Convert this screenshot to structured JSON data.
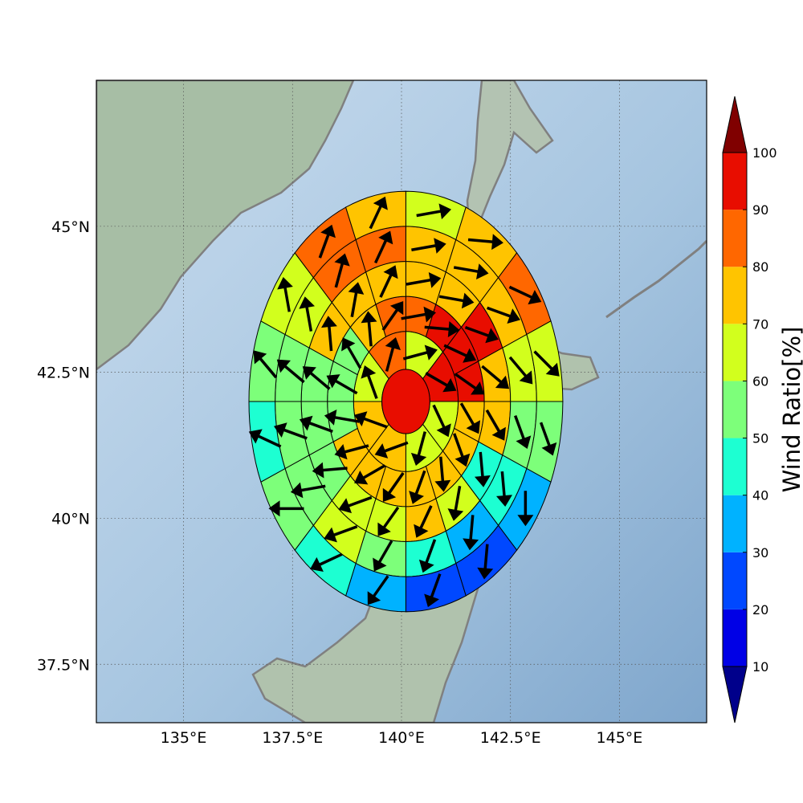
{
  "chart_data": {
    "type": "polar-grid-wind-map",
    "title": "",
    "projection": "equirectangular",
    "map_extent": {
      "lon": [
        133.0,
        147.0
      ],
      "lat": [
        36.5,
        47.5
      ]
    },
    "center": {
      "lon": 140.1,
      "lat": 42.0
    },
    "ring_edges_deg": [
      0.55,
      1.2,
      1.8,
      2.4,
      3.0
    ],
    "outer_ring_edges_deg": [
      3.0,
      3.6
    ],
    "grid_spacing_deg": 2.5,
    "x_ticks": [
      {
        "value": 135.0,
        "label": "135°E"
      },
      {
        "value": 137.5,
        "label": "137.5°E"
      },
      {
        "value": 140.0,
        "label": "140°E"
      },
      {
        "value": 142.5,
        "label": "142.5°E"
      },
      {
        "value": 145.0,
        "label": "145°E"
      }
    ],
    "y_ticks": [
      {
        "value": 45.0,
        "label": "45°N"
      },
      {
        "value": 42.5,
        "label": "42.5°N"
      },
      {
        "value": 40.0,
        "label": "40°N"
      },
      {
        "value": 37.5,
        "label": "37.5°N"
      }
    ],
    "center_cell": {
      "value": 95
    },
    "rings": [
      {
        "name": "ring-1",
        "sectors": 8,
        "start_deg": 0,
        "values": [
          65,
          95,
          65,
          65,
          75,
          75,
          65,
          85
        ],
        "arrow_deg": [
          75,
          120,
          155,
          195,
          250,
          290,
          340,
          15
        ]
      },
      {
        "name": "ring-2",
        "sectors": 16,
        "start_deg": 0,
        "values": [
          85,
          95,
          95,
          90,
          75,
          75,
          75,
          75,
          75,
          75,
          75,
          55,
          55,
          55,
          75,
          85
        ],
        "arrow_deg": [
          80,
          95,
          115,
          125,
          150,
          160,
          175,
          200,
          215,
          240,
          255,
          280,
          300,
          330,
          355,
          35
        ]
      },
      {
        "name": "ring-3",
        "sectors": 16,
        "start_deg": 0,
        "values": [
          75,
          75,
          90,
          75,
          75,
          45,
          65,
          75,
          65,
          65,
          55,
          55,
          55,
          75,
          75,
          75
        ],
        "arrow_deg": [
          80,
          100,
          110,
          130,
          150,
          175,
          190,
          205,
          215,
          250,
          265,
          290,
          310,
          355,
          10,
          25
        ]
      },
      {
        "name": "ring-4",
        "sectors": 16,
        "start_deg": 0,
        "values": [
          75,
          75,
          75,
          65,
          55,
          45,
          35,
          45,
          55,
          65,
          55,
          55,
          55,
          65,
          85,
          85
        ],
        "arrow_deg": [
          80,
          100,
          110,
          140,
          160,
          175,
          185,
          200,
          210,
          250,
          260,
          290,
          310,
          350,
          15,
          25
        ]
      },
      {
        "name": "ring-5",
        "sectors": 16,
        "start_deg": 0,
        "values": [
          65,
          75,
          85,
          65,
          55,
          35,
          25,
          25,
          35,
          45,
          55,
          45,
          55,
          65,
          85,
          75
        ],
        "arrow_deg": [
          80,
          95,
          115,
          135,
          160,
          180,
          185,
          200,
          215,
          245,
          270,
          295,
          320,
          350,
          20,
          25
        ]
      },
      {
        "name": "ring-6",
        "sectors": 32,
        "start_deg": 0,
        "values": [
          65,
          75,
          75,
          85,
          65,
          55,
          55,
          35,
          35,
          25,
          25,
          25,
          25,
          35,
          45,
          45,
          45,
          55,
          55,
          55,
          45,
          55,
          55,
          45,
          45,
          55,
          75,
          85,
          85,
          75,
          75,
          75
        ],
        "arrow_deg": [
          80,
          100,
          110,
          130,
          140,
          150,
          165,
          175,
          185,
          190,
          195,
          200,
          210,
          220,
          240,
          245,
          250,
          255,
          260,
          265,
          270,
          290,
          300,
          315,
          325,
          330,
          345,
          350,
          5,
          15,
          20,
          25
        ]
      }
    ],
    "colorbar": {
      "label": "Wind Ratio[%]",
      "tick_labels": [
        "10",
        "20",
        "30",
        "40",
        "50",
        "60",
        "70",
        "80",
        "90",
        "100"
      ],
      "bounds": [
        10,
        20,
        30,
        40,
        50,
        60,
        70,
        80,
        90,
        100
      ],
      "colors": [
        "#0000e6",
        "#0048ff",
        "#00b2ff",
        "#1dffd2",
        "#7dff7a",
        "#d2ff1d",
        "#ffc400",
        "#ff6700",
        "#e80d00"
      ],
      "under_color": "#00008b",
      "over_color": "#800000",
      "extend": "both"
    },
    "style": {
      "sea_color": "#a9c8e2",
      "land_color": "#a9bfae",
      "coastline_color": "#808080",
      "grid_color": "#555555",
      "arrow_color": "#000000"
    }
  }
}
